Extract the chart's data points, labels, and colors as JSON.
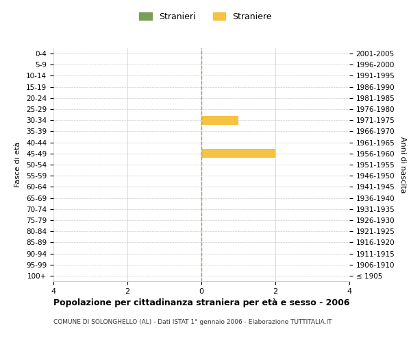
{
  "age_groups": [
    "100+",
    "95-99",
    "90-94",
    "85-89",
    "80-84",
    "75-79",
    "70-74",
    "65-69",
    "60-64",
    "55-59",
    "50-54",
    "45-49",
    "40-44",
    "35-39",
    "30-34",
    "25-29",
    "20-24",
    "15-19",
    "10-14",
    "5-9",
    "0-4"
  ],
  "birth_years": [
    "≤ 1905",
    "1906-1910",
    "1911-1915",
    "1916-1920",
    "1921-1925",
    "1926-1930",
    "1931-1935",
    "1936-1940",
    "1941-1945",
    "1946-1950",
    "1951-1955",
    "1956-1960",
    "1961-1965",
    "1966-1970",
    "1971-1975",
    "1976-1980",
    "1981-1985",
    "1986-1990",
    "1991-1995",
    "1996-2000",
    "2001-2005"
  ],
  "males": [
    0,
    0,
    0,
    0,
    0,
    0,
    0,
    0,
    0,
    0,
    0,
    0,
    0,
    0,
    0,
    0,
    0,
    0,
    0,
    0,
    0
  ],
  "females": [
    0,
    0,
    0,
    0,
    0,
    0,
    0,
    0,
    0,
    0,
    0,
    2,
    0,
    0,
    1,
    0,
    0,
    0,
    0,
    0,
    0
  ],
  "male_color": "#7B9E5A",
  "female_color": "#F5C242",
  "male_legend": "Stranieri",
  "female_legend": "Straniere",
  "ylabel_left": "Fasce di età",
  "ylabel_right": "Anni di nascita",
  "xlim": 4,
  "title_main": "Popolazione per cittadinanza straniera per età e sesso - 2006",
  "title_sub": "COMUNE DI SOLONGHELLO (AL) - Dati ISTAT 1° gennaio 2006 - Elaborazione TUTTITALIA.IT",
  "background_color": "#ffffff",
  "grid_color": "#cccccc",
  "bar_height": 0.8,
  "center_line_color": "#999966"
}
